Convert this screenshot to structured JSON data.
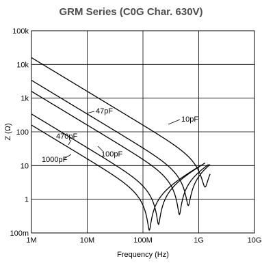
{
  "chart_data": {
    "type": "line",
    "title": "GRM Series (C0G Char. 630V)",
    "xlabel": "Frequency (Hz)",
    "ylabel": "Z (Ω)",
    "x_scale": "log",
    "y_scale": "log",
    "xlim": [
      1000000,
      10000000000
    ],
    "ylim": [
      0.1,
      100000
    ],
    "x_ticks": [
      {
        "value": 1000000,
        "label": "1M"
      },
      {
        "value": 10000000,
        "label": "10M"
      },
      {
        "value": 100000000,
        "label": "100M"
      },
      {
        "value": 1000000000,
        "label": "1G"
      },
      {
        "value": 10000000000,
        "label": "10G"
      }
    ],
    "y_ticks": [
      {
        "value": 0.1,
        "label": "100m"
      },
      {
        "value": 1,
        "label": "1"
      },
      {
        "value": 10,
        "label": "10"
      },
      {
        "value": 100,
        "label": "100"
      },
      {
        "value": 1000,
        "label": "1k"
      },
      {
        "value": 10000,
        "label": "10k"
      },
      {
        "value": 100000,
        "label": "100k"
      }
    ],
    "grid": true,
    "legend": "inline-annotations",
    "series": [
      {
        "name": "10pF",
        "capacitance": 1e-11,
        "srf_hz": 1300000000.0,
        "min_z": 2.3,
        "points": [
          [
            1000000.0,
            15900
          ],
          [
            10000000.0,
            1590
          ],
          [
            100000000.0,
            159
          ],
          [
            500000000.0,
            28
          ],
          [
            1300000000.0,
            2.3
          ],
          [
            1600000000.0,
            8.5
          ]
        ]
      },
      {
        "name": "47pF",
        "capacitance": 4.7e-11,
        "srf_hz": 650000000.0,
        "min_z": 0.65,
        "points": [
          [
            1000000.0,
            3390
          ],
          [
            10000000.0,
            339
          ],
          [
            100000000.0,
            33.9
          ],
          [
            400000000.0,
            5
          ],
          [
            650000000.0,
            0.65
          ],
          [
            1600000000.0,
            15
          ]
        ]
      },
      {
        "name": "100pF",
        "capacitance": 1e-10,
        "srf_hz": 450000000.0,
        "min_z": 0.35,
        "points": [
          [
            1000000.0,
            1590
          ],
          [
            10000000.0,
            159
          ],
          [
            100000000.0,
            15.9
          ],
          [
            300000000.0,
            3
          ],
          [
            450000000.0,
            0.35
          ],
          [
            1500000000.0,
            13
          ]
        ]
      },
      {
        "name": "470pF",
        "capacitance": 4.7e-10,
        "srf_hz": 190000000.0,
        "min_z": 0.18,
        "points": [
          [
            1000000.0,
            339
          ],
          [
            10000000.0,
            33.9
          ],
          [
            100000000.0,
            3.39
          ],
          [
            190000000.0,
            0.18
          ],
          [
            1300000000.0,
            11
          ]
        ]
      },
      {
        "name": "1000pF",
        "capacitance": 1e-09,
        "srf_hz": 130000000.0,
        "min_z": 0.12,
        "points": [
          [
            1000000.0,
            159
          ],
          [
            10000000.0,
            15.9
          ],
          [
            100000000.0,
            1.59
          ],
          [
            130000000.0,
            0.12
          ],
          [
            1100000000.0,
            9
          ]
        ]
      }
    ],
    "annotations": [
      "10pF",
      "47pF",
      "100pF",
      "470pF",
      "1000pF"
    ]
  }
}
